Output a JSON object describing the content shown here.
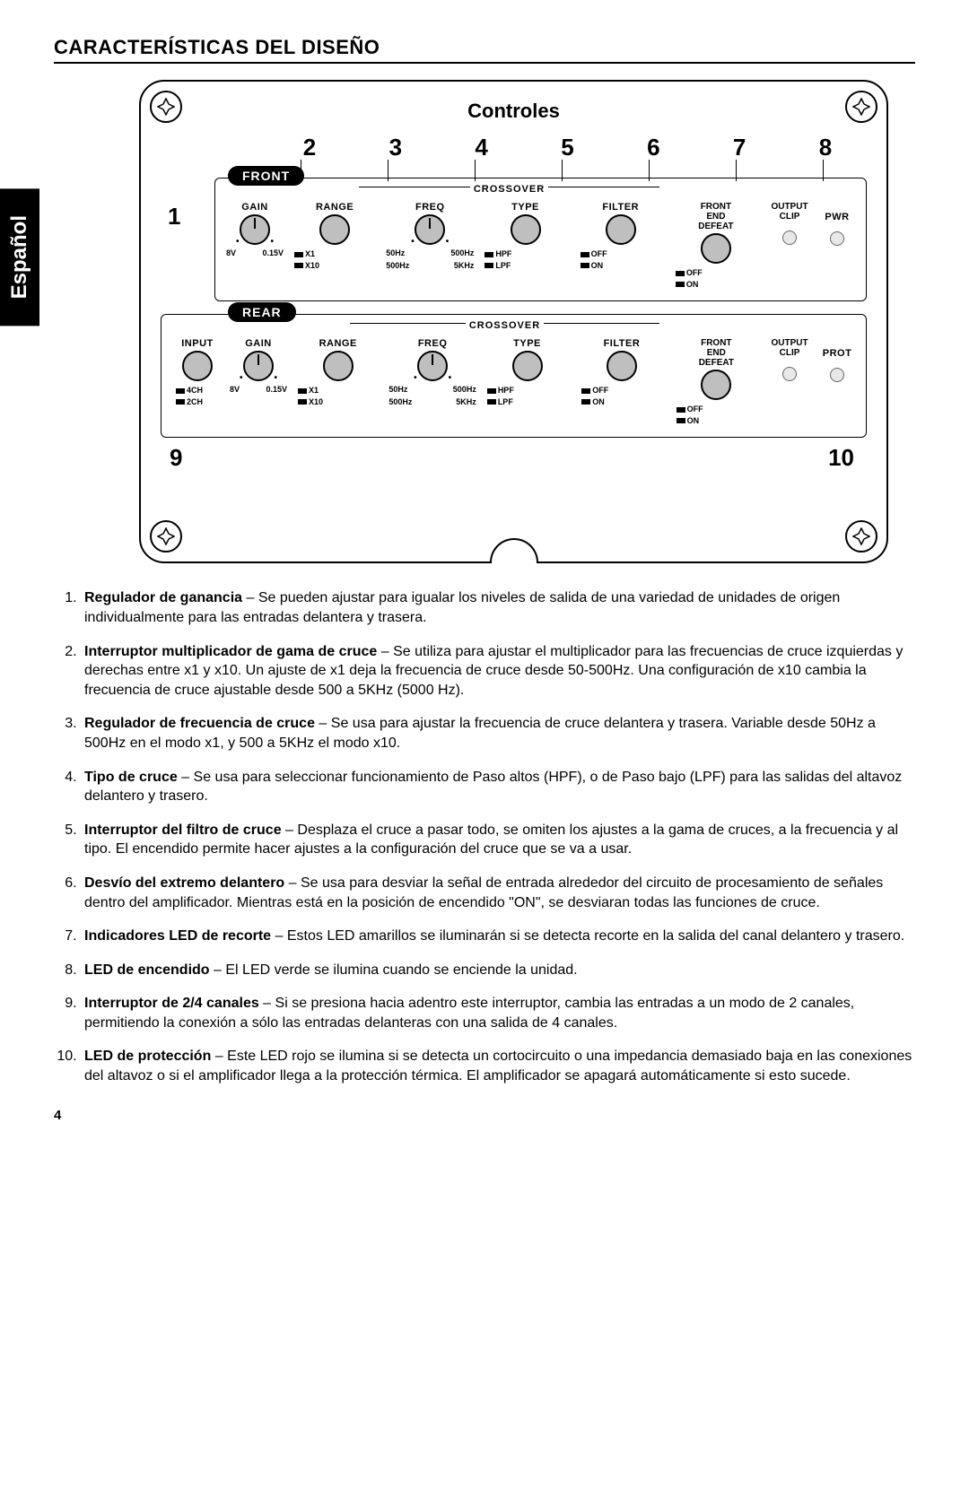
{
  "page_number": "4",
  "language_tab": "Español",
  "section_title": "CARACTERÍSTICAS DEL DISEÑO",
  "panel": {
    "title": "Controles",
    "top_numbers": [
      "2",
      "3",
      "4",
      "5",
      "6",
      "7",
      "8"
    ],
    "num_1": "1",
    "num_9": "9",
    "num_10": "10",
    "front": {
      "pill": "FRONT",
      "crossover_label": "CROSSOVER",
      "labels": {
        "gain": "GAIN",
        "range": "RANGE",
        "freq": "FREQ",
        "type": "TYPE",
        "filter": "FILTER",
        "fed": "FRONT\nEND\nDEFEAT",
        "clip": "OUTPUT\nCLIP",
        "pwr": "PWR"
      },
      "sub": {
        "gain_l": "8V",
        "gain_r": "0.15V",
        "range_1": "X1",
        "range_2": "X10",
        "freq_1l": "50Hz",
        "freq_1r": "500Hz",
        "freq_2l": "500Hz",
        "freq_2r": "5KHz",
        "type_1": "HPF",
        "type_2": "LPF",
        "filter_1": "OFF",
        "filter_2": "ON",
        "fed_1": "OFF",
        "fed_2": "ON"
      }
    },
    "rear": {
      "pill": "REAR",
      "crossover_label": "CROSSOVER",
      "labels": {
        "input": "INPUT",
        "gain": "GAIN",
        "range": "RANGE",
        "freq": "FREQ",
        "type": "TYPE",
        "filter": "FILTER",
        "fed": "FRONT\nEND\nDEFEAT",
        "clip": "OUTPUT\nCLIP",
        "prot": "PROT"
      },
      "sub": {
        "input_1": "4CH",
        "input_2": "2CH",
        "gain_l": "8V",
        "gain_r": "0.15V",
        "range_1": "X1",
        "range_2": "X10",
        "freq_1l": "50Hz",
        "freq_1r": "500Hz",
        "freq_2l": "500Hz",
        "freq_2r": "5KHz",
        "type_1": "HPF",
        "type_2": "LPF",
        "filter_1": "OFF",
        "filter_2": "ON",
        "fed_1": "OFF",
        "fed_2": "ON"
      }
    }
  },
  "descriptions": [
    {
      "n": "1",
      "title": "Regulador de ganancia",
      "body": " – Se pueden ajustar para igualar los niveles de salida de una variedad de unidades de origen individualmente para las entradas delantera y trasera."
    },
    {
      "n": "2",
      "title": "Interruptor multiplicador de gama de cruce",
      "body": " – Se utiliza para ajustar el multiplicador para las frecuencias de cruce izquierdas y derechas entre x1 y x10. Un ajuste de x1 deja la frecuencia de cruce desde 50-500Hz. Una configuración de x10 cambia la frecuencia de cruce ajustable desde 500 a 5KHz (5000 Hz)."
    },
    {
      "n": "3",
      "title": "Regulador de frecuencia de cruce",
      "body": " – Se usa para ajustar la frecuencia de cruce delantera y trasera. Variable desde 50Hz a 500Hz en el modo x1, y 500 a 5KHz el modo x10."
    },
    {
      "n": "4",
      "title": "Tipo de cruce",
      "body": " – Se usa para seleccionar funcionamiento de Paso altos (HPF), o de Paso bajo (LPF) para las salidas del altavoz delantero y trasero."
    },
    {
      "n": "5",
      "title": "Interruptor del filtro de cruce",
      "body": " – Desplaza el cruce a pasar todo, se omiten los ajustes a la gama de cruces, a la frecuencia y al tipo.  El encendido permite hacer ajustes a la configuración del cruce que se va a usar."
    },
    {
      "n": "6",
      "title": "Desvío del extremo delantero",
      "body": " – Se usa para desviar la señal de entrada alrededor del circuito de procesamiento de señales dentro del amplificador. Mientras está en la posición de encendido \"ON\", se desviaran todas las funciones de cruce."
    },
    {
      "n": "7",
      "title": "Indicadores LED de recorte",
      "body": " – Estos LED amarillos se iluminarán si se detecta recorte en la salida del canal  delantero y trasero."
    },
    {
      "n": "8",
      "title": "LED de encendido",
      "body": " – El LED verde se ilumina cuando se enciende la unidad."
    },
    {
      "n": "9",
      "title": "Interruptor de 2/4 canales",
      "body": " – Si se presiona hacia adentro este interruptor,  cambia las entradas a un modo de 2 canales, permitiendo la conexión a sólo las entradas delanteras con una salida de 4 canales."
    },
    {
      "n": "10",
      "title": "LED de protección",
      "body": " – Este LED rojo se ilumina si se detecta un cortocircuito o una impedancia demasiado baja en las conexiones del altavoz o si el amplificador llega a la protección térmica. El amplificador se apagará automáticamente si esto sucede."
    }
  ],
  "colors": {
    "knob_fill": "#bfbfbf",
    "led_fill": "#e8e8e8",
    "text": "#000000",
    "bg": "#ffffff"
  }
}
